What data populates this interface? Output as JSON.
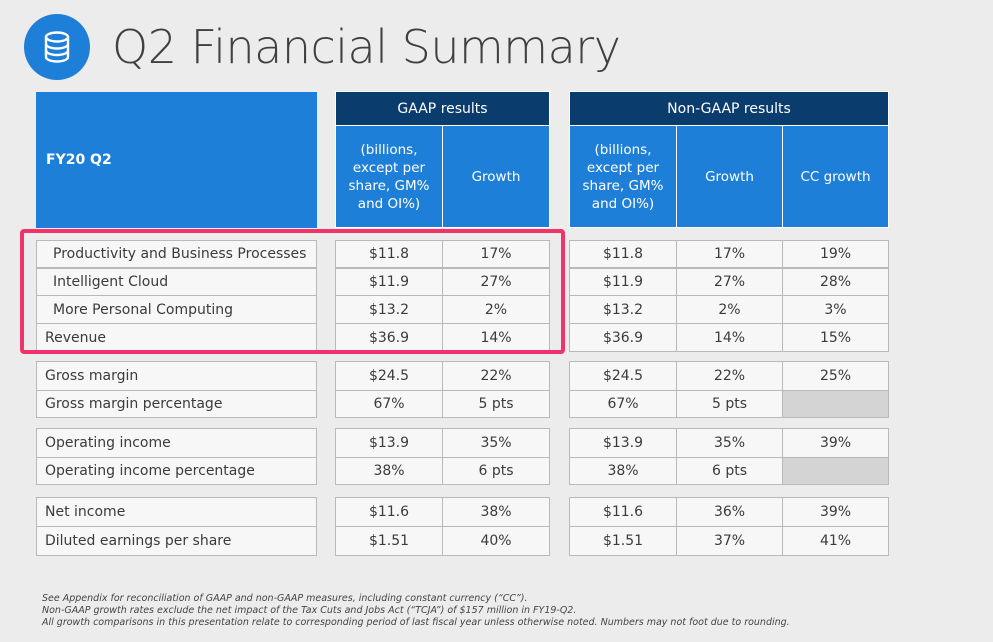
{
  "title": "Q2 Financial Summary",
  "logo_icon": "database-icon",
  "colors": {
    "header_dark": "#0a3c6e",
    "header_blue": "#1e7fd9",
    "highlight": "#f0336a"
  },
  "table": {
    "row_header_label": "FY20 Q2",
    "gaap_group": "GAAP results",
    "nongaap_group": "Non-GAAP results",
    "col_amount": "(billions, except per share, GM% and OI%)",
    "col_growth": "Growth",
    "col_cc_growth": "CC growth",
    "rows": [
      {
        "label": "Productivity and Business Processes",
        "gaap_amount": "$11.8",
        "gaap_growth": "17%",
        "ng_amount": "$11.8",
        "ng_growth": "17%",
        "ng_cc": "19%"
      },
      {
        "label": "Intelligent Cloud",
        "gaap_amount": "$11.9",
        "gaap_growth": "27%",
        "ng_amount": "$11.9",
        "ng_growth": "27%",
        "ng_cc": "28%"
      },
      {
        "label": "More Personal Computing",
        "gaap_amount": "$13.2",
        "gaap_growth": "2%",
        "ng_amount": "$13.2",
        "ng_growth": "2%",
        "ng_cc": "3%"
      },
      {
        "label": "Revenue",
        "gaap_amount": "$36.9",
        "gaap_growth": "14%",
        "ng_amount": "$36.9",
        "ng_growth": "14%",
        "ng_cc": "15%"
      },
      {
        "label": "Gross margin",
        "gaap_amount": "$24.5",
        "gaap_growth": "22%",
        "ng_amount": "$24.5",
        "ng_growth": "22%",
        "ng_cc": "25%"
      },
      {
        "label": "Gross margin percentage",
        "gaap_amount": "67%",
        "gaap_growth": "5 pts",
        "ng_amount": "67%",
        "ng_growth": "5 pts",
        "ng_cc": ""
      },
      {
        "label": "Operating income",
        "gaap_amount": "$13.9",
        "gaap_growth": "35%",
        "ng_amount": "$13.9",
        "ng_growth": "35%",
        "ng_cc": "39%"
      },
      {
        "label": "Operating income percentage",
        "gaap_amount": "38%",
        "gaap_growth": "6 pts",
        "ng_amount": "38%",
        "ng_growth": "6 pts",
        "ng_cc": ""
      },
      {
        "label": "Net income",
        "gaap_amount": "$11.6",
        "gaap_growth": "38%",
        "ng_amount": "$11.6",
        "ng_growth": "36%",
        "ng_cc": "39%"
      },
      {
        "label": "Diluted earnings per share",
        "gaap_amount": "$1.51",
        "gaap_growth": "40%",
        "ng_amount": "$1.51",
        "ng_growth": "37%",
        "ng_cc": "41%"
      }
    ]
  },
  "footnotes": [
    "See Appendix for reconciliation of GAAP and non-GAAP measures, including constant currency (“CC”).",
    "Non-GAAP growth rates exclude the net impact of the Tax Cuts and Jobs Act (“TCJA”) of $157 million in FY19-Q2.",
    "All growth comparisons in this presentation relate to corresponding period of last fiscal year unless otherwise noted. Numbers may not foot due to rounding."
  ]
}
